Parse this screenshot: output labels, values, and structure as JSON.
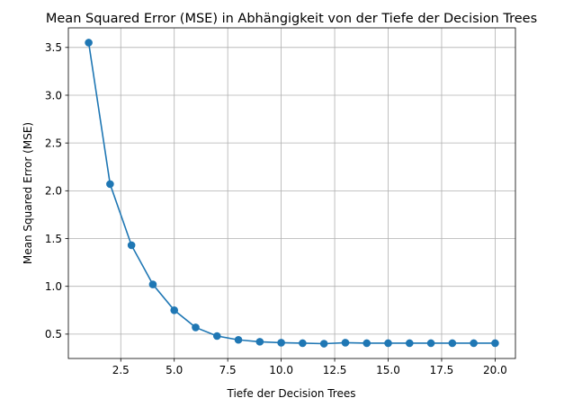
{
  "chart_data": {
    "type": "line",
    "title": "Mean Squared Error (MSE) in Abhängigkeit von der Tiefe der Decision Trees",
    "xlabel": "Tiefe der Decision Trees",
    "ylabel": "Mean Squared Error (MSE)",
    "xlim": [
      0.05,
      20.95
    ],
    "ylim": [
      0.245,
      3.705
    ],
    "grid": true,
    "line_color": "#1f77b4",
    "marker": "circle",
    "x_ticks": [
      2.5,
      5.0,
      7.5,
      10.0,
      12.5,
      15.0,
      17.5,
      20.0
    ],
    "x_tick_labels": [
      "2.5",
      "5.0",
      "7.5",
      "10.0",
      "12.5",
      "15.0",
      "17.5",
      "20.0"
    ],
    "y_ticks": [
      0.5,
      1.0,
      1.5,
      2.0,
      2.5,
      3.0,
      3.5
    ],
    "y_tick_labels": [
      "0.5",
      "1.0",
      "1.5",
      "2.0",
      "2.5",
      "3.0",
      "3.5"
    ],
    "x": [
      1,
      2,
      3,
      4,
      5,
      6,
      7,
      8,
      9,
      10,
      11,
      12,
      13,
      14,
      15,
      16,
      17,
      18,
      19,
      20
    ],
    "y": [
      3.55,
      2.07,
      1.43,
      1.02,
      0.75,
      0.57,
      0.48,
      0.44,
      0.42,
      0.41,
      0.405,
      0.4,
      0.41,
      0.405,
      0.405,
      0.405,
      0.405,
      0.405,
      0.405,
      0.405
    ]
  }
}
